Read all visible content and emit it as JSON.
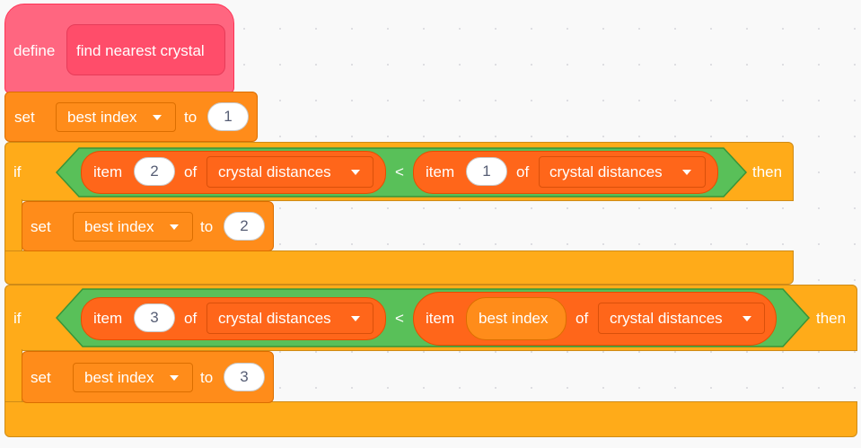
{
  "colors": {
    "events_pink": "#ff6680",
    "control": "#ffab19",
    "variables": "#ff8c1a",
    "lists": "#ff661a",
    "operators": "#59c059"
  },
  "define_block": {
    "keyword": "define",
    "name": "find nearest crystal"
  },
  "set_best_index_initial": {
    "keyword": "set",
    "variable": "best index",
    "to_label": "to",
    "value": "1"
  },
  "if_block_1": {
    "keyword": "if",
    "then_label": "then",
    "left": {
      "item_label": "item",
      "index": "2",
      "of_label": "of",
      "list": "crystal distances"
    },
    "operator": "<",
    "right": {
      "item_label": "item",
      "index": "1",
      "of_label": "of",
      "list": "crystal distances"
    },
    "inner_set": {
      "keyword": "set",
      "variable": "best index",
      "to_label": "to",
      "value": "2"
    }
  },
  "if_block_2": {
    "keyword": "if",
    "then_label": "then",
    "left": {
      "item_label": "item",
      "index": "3",
      "of_label": "of",
      "list": "crystal distances"
    },
    "operator": "<",
    "right": {
      "item_label": "item",
      "index_reporter": "best index",
      "of_label": "of",
      "list": "crystal distances"
    },
    "inner_set": {
      "keyword": "set",
      "variable": "best index",
      "to_label": "to",
      "value": "3"
    }
  }
}
